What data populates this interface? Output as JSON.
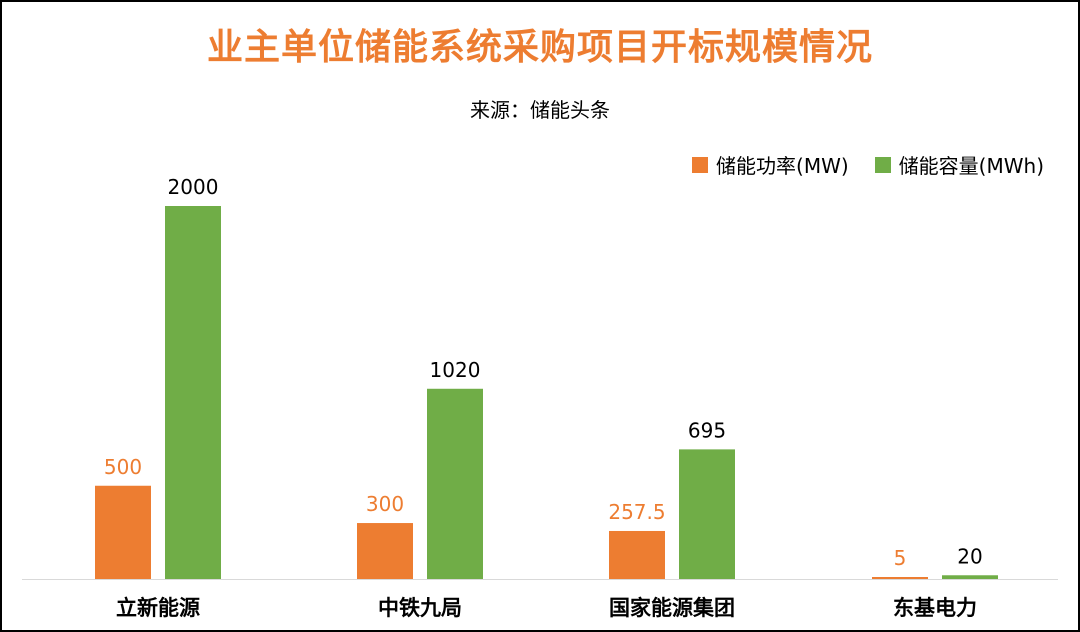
{
  "title": "业主单位储能系统采购项目开标规模情况",
  "subtitle": "来源：储能头条",
  "colors": {
    "power": "#ED7D31",
    "capacity": "#70AD47",
    "title": "#ED7D31"
  },
  "chart_data": {
    "type": "bar",
    "categories": [
      "立新能源",
      "中铁九局",
      "国家能源集团",
      "东基电力"
    ],
    "series": [
      {
        "name": "储能功率(MW)",
        "values": [
          500,
          300,
          257.5,
          5
        ],
        "labels": [
          "500",
          "300",
          "257.5",
          "5"
        ]
      },
      {
        "name": "储能容量(MWh)",
        "values": [
          2000,
          1020,
          695,
          20
        ],
        "labels": [
          "2000",
          "1020",
          "695",
          "20"
        ]
      }
    ],
    "ylim": [
      0,
      2000
    ],
    "grid": false,
    "legend_position": "top-right"
  }
}
